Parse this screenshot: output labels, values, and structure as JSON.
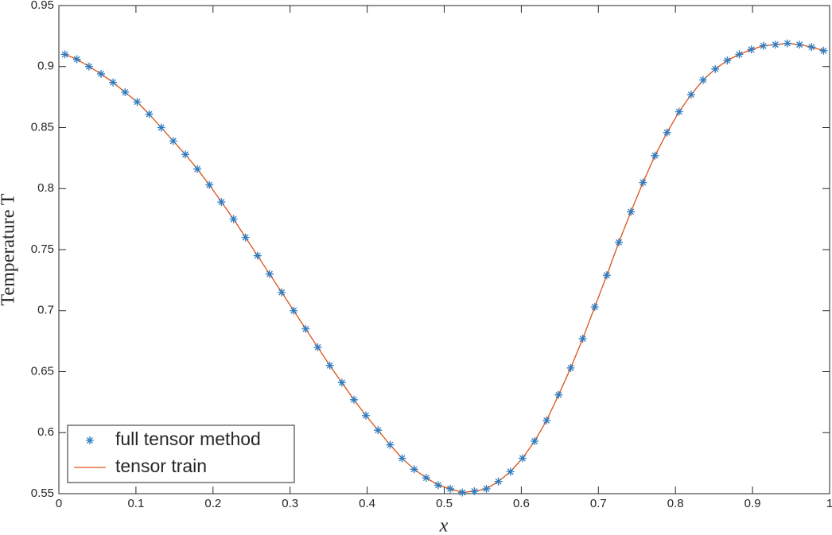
{
  "chart_data": {
    "type": "line_scatter",
    "x_label": "x",
    "y_label": "Temperature T",
    "x": [
      0.0078,
      0.0234,
      0.0391,
      0.0547,
      0.0703,
      0.0859,
      0.1016,
      0.1172,
      0.1328,
      0.1484,
      0.1641,
      0.1797,
      0.1953,
      0.2109,
      0.2266,
      0.2422,
      0.2578,
      0.2734,
      0.2891,
      0.3047,
      0.3203,
      0.3359,
      0.3516,
      0.3672,
      0.3828,
      0.3984,
      0.4141,
      0.4297,
      0.4453,
      0.4609,
      0.4766,
      0.4922,
      0.5078,
      0.5234,
      0.5391,
      0.5547,
      0.5703,
      0.5859,
      0.6016,
      0.6172,
      0.6328,
      0.6484,
      0.6641,
      0.6797,
      0.6953,
      0.7109,
      0.7266,
      0.7422,
      0.7578,
      0.7734,
      0.7891,
      0.8047,
      0.8203,
      0.8359,
      0.8516,
      0.8672,
      0.8828,
      0.8984,
      0.9141,
      0.9297,
      0.9453,
      0.9609,
      0.9766,
      0.9922
    ],
    "series": [
      {
        "name": "full tensor method",
        "style": "marker",
        "color": "#2f7bbf",
        "values": [
          0.91,
          0.906,
          0.9,
          0.894,
          0.887,
          0.879,
          0.871,
          0.861,
          0.85,
          0.839,
          0.828,
          0.816,
          0.803,
          0.789,
          0.775,
          0.76,
          0.745,
          0.73,
          0.715,
          0.7,
          0.685,
          0.67,
          0.655,
          0.641,
          0.627,
          0.614,
          0.602,
          0.59,
          0.579,
          0.57,
          0.563,
          0.557,
          0.554,
          0.551,
          0.552,
          0.554,
          0.56,
          0.568,
          0.579,
          0.593,
          0.61,
          0.631,
          0.653,
          0.677,
          0.703,
          0.729,
          0.756,
          0.781,
          0.805,
          0.827,
          0.846,
          0.863,
          0.877,
          0.889,
          0.898,
          0.905,
          0.91,
          0.914,
          0.917,
          0.918,
          0.919,
          0.918,
          0.916,
          0.913
        ]
      },
      {
        "name": "tensor train",
        "style": "line",
        "color": "#d95319",
        "values": [
          0.91,
          0.906,
          0.9,
          0.894,
          0.887,
          0.879,
          0.871,
          0.861,
          0.85,
          0.839,
          0.828,
          0.816,
          0.803,
          0.789,
          0.775,
          0.76,
          0.745,
          0.73,
          0.715,
          0.7,
          0.685,
          0.67,
          0.655,
          0.641,
          0.627,
          0.614,
          0.602,
          0.59,
          0.579,
          0.57,
          0.563,
          0.557,
          0.554,
          0.551,
          0.552,
          0.554,
          0.56,
          0.568,
          0.579,
          0.593,
          0.61,
          0.631,
          0.653,
          0.677,
          0.703,
          0.729,
          0.756,
          0.781,
          0.805,
          0.827,
          0.846,
          0.863,
          0.877,
          0.889,
          0.898,
          0.905,
          0.91,
          0.914,
          0.917,
          0.918,
          0.919,
          0.918,
          0.916,
          0.913
        ]
      }
    ],
    "xlim": [
      0,
      1
    ],
    "xticks": [
      0,
      0.1,
      0.2,
      0.3,
      0.4,
      0.5,
      0.6,
      0.7,
      0.8,
      0.9,
      1
    ],
    "ylim": [
      0.55,
      0.95
    ],
    "yticks": [
      0.55,
      0.6,
      0.65,
      0.7,
      0.75,
      0.8,
      0.85,
      0.9,
      0.95
    ],
    "legend": "lower left"
  }
}
